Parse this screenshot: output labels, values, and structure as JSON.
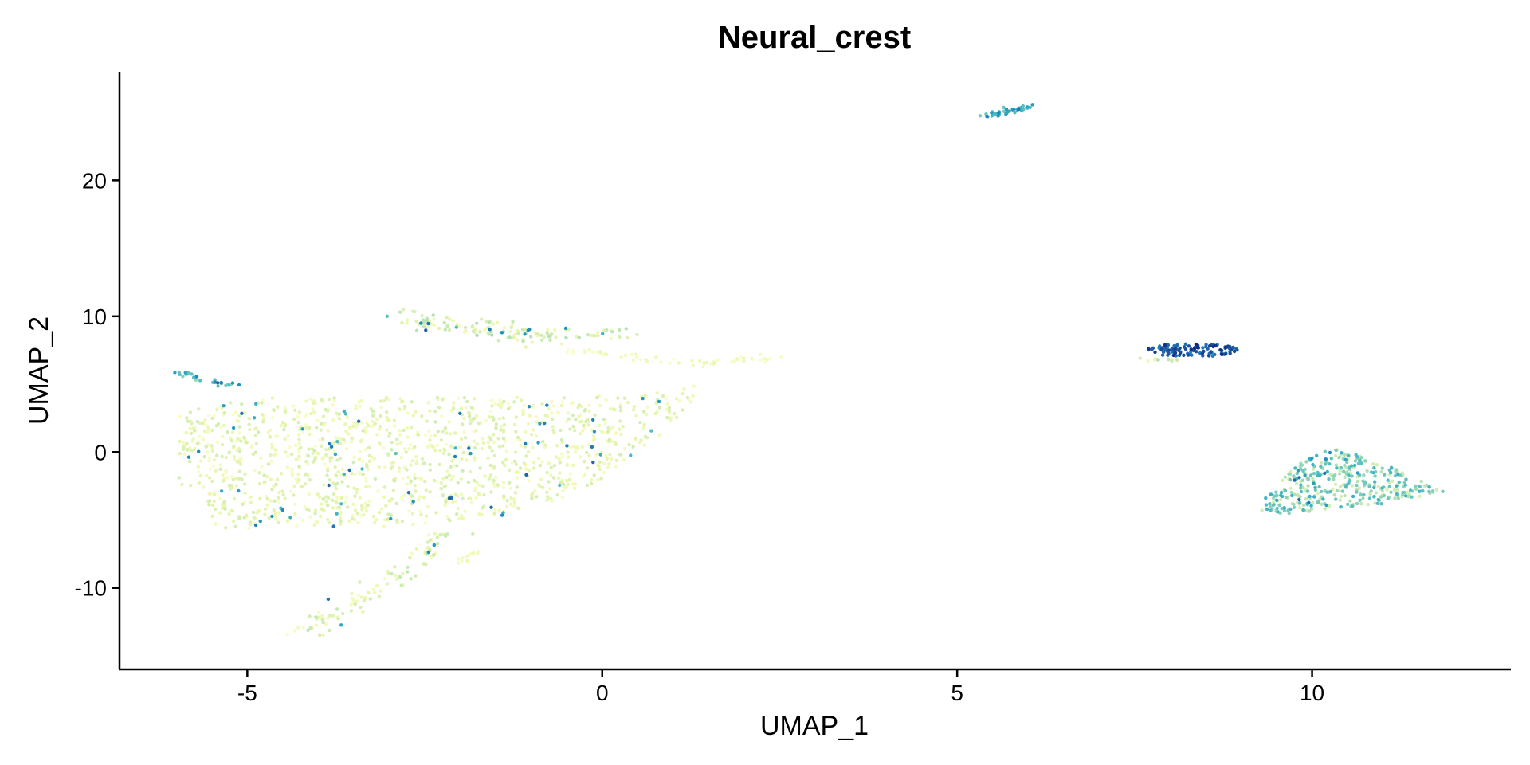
{
  "chart_data": {
    "type": "scatter",
    "title": "Neural_crest",
    "xlabel": "UMAP_1",
    "ylabel": "UMAP_2",
    "xlim": [
      -6.8,
      12.8
    ],
    "ylim": [
      -16,
      28
    ],
    "x_ticks": [
      -5,
      0,
      5,
      10
    ],
    "y_ticks": [
      -10,
      0,
      10,
      20
    ],
    "x_tick_labels": [
      "-5",
      "0",
      "5",
      "10"
    ],
    "y_tick_labels": [
      "-10",
      "0",
      "10",
      "20"
    ],
    "grid": false,
    "legend": "none",
    "color_scale": [
      "#ffffd9",
      "#edf8b1",
      "#c7e9b4",
      "#7fcdbb",
      "#41b6c4",
      "#1d91c0",
      "#225ea8",
      "#0c2c84"
    ],
    "clusters": [
      {
        "name": "main_body",
        "shape": "poly",
        "poly": [
          [
            -6,
            3
          ],
          [
            -5,
            4
          ],
          [
            -2,
            4
          ],
          [
            0.5,
            4.3
          ],
          [
            1.5,
            5
          ],
          [
            0.8,
            1
          ],
          [
            -0.3,
            -3
          ],
          [
            -1.5,
            -4.8
          ],
          [
            -3,
            -5.5
          ],
          [
            -4.5,
            -5.5
          ],
          [
            -5.4,
            -5.8
          ],
          [
            -6,
            -2
          ]
        ],
        "n": 1300,
        "level": [
          0.05,
          0.25
        ],
        "hi_frac": 0.05
      },
      {
        "name": "upper_arm",
        "shape": "band",
        "pts": [
          [
            -2.8,
            9.9
          ],
          [
            -2,
            9.2
          ],
          [
            -1,
            8.6
          ],
          [
            0.2,
            8.6
          ]
        ],
        "width": 0.9,
        "n": 140,
        "level": [
          0.1,
          0.35
        ],
        "hi_frac": 0.06
      },
      {
        "name": "upper_arm_tail",
        "shape": "band",
        "pts": [
          [
            -0.5,
            7.5
          ],
          [
            1,
            6.6
          ],
          [
            2.4,
            6.8
          ]
        ],
        "width": 0.4,
        "n": 60,
        "level": [
          0.02,
          0.15
        ],
        "hi_frac": 0
      },
      {
        "name": "left_tip",
        "shape": "band",
        "pts": [
          [
            -6,
            5.9
          ],
          [
            -5.2,
            4.9
          ]
        ],
        "width": 0.3,
        "n": 30,
        "level": [
          0.35,
          0.6
        ],
        "hi_frac": 0.2
      },
      {
        "name": "lower_arm",
        "shape": "band",
        "pts": [
          [
            -4.3,
            -13.5
          ],
          [
            -3.8,
            -12
          ],
          [
            -3.3,
            -10.5
          ],
          [
            -2.7,
            -8.5
          ],
          [
            -2.2,
            -6
          ]
        ],
        "width": 0.7,
        "n": 110,
        "level": [
          0.05,
          0.3
        ],
        "hi_frac": 0.04
      },
      {
        "name": "lower_stub",
        "shape": "band",
        "pts": [
          [
            -2.1,
            -8.1
          ],
          [
            -1.7,
            -7.3
          ]
        ],
        "width": 0.3,
        "n": 12,
        "level": [
          0.05,
          0.15
        ],
        "hi_frac": 0
      },
      {
        "name": "top_streak",
        "shape": "band",
        "pts": [
          [
            5.4,
            24.7
          ],
          [
            6.1,
            25.5
          ]
        ],
        "width": 0.25,
        "n": 40,
        "level": [
          0.45,
          0.7
        ],
        "hi_frac": 0.2
      },
      {
        "name": "dark_cluster",
        "shape": "ellipse",
        "cx": 8.3,
        "cy": 7.5,
        "rx": 0.65,
        "ry": 0.5,
        "n": 110,
        "level": [
          0.75,
          1.0
        ],
        "hi_frac": 0
      },
      {
        "name": "dark_cluster_tail",
        "shape": "band",
        "pts": [
          [
            7.6,
            6.9
          ],
          [
            8.1,
            6.7
          ]
        ],
        "width": 0.2,
        "n": 14,
        "level": [
          0.05,
          0.35
        ],
        "hi_frac": 0
      },
      {
        "name": "right_cluster",
        "shape": "poly",
        "poly": [
          [
            9.2,
            -4.3
          ],
          [
            9.6,
            -4.6
          ],
          [
            11,
            -3.8
          ],
          [
            11.9,
            -3
          ],
          [
            11.2,
            -1.3
          ],
          [
            10.5,
            0.2
          ],
          [
            10.2,
            0.2
          ],
          [
            9.7,
            -1.2
          ]
        ],
        "n": 380,
        "level": [
          0.2,
          0.6
        ],
        "hi_frac": 0.05
      }
    ]
  }
}
